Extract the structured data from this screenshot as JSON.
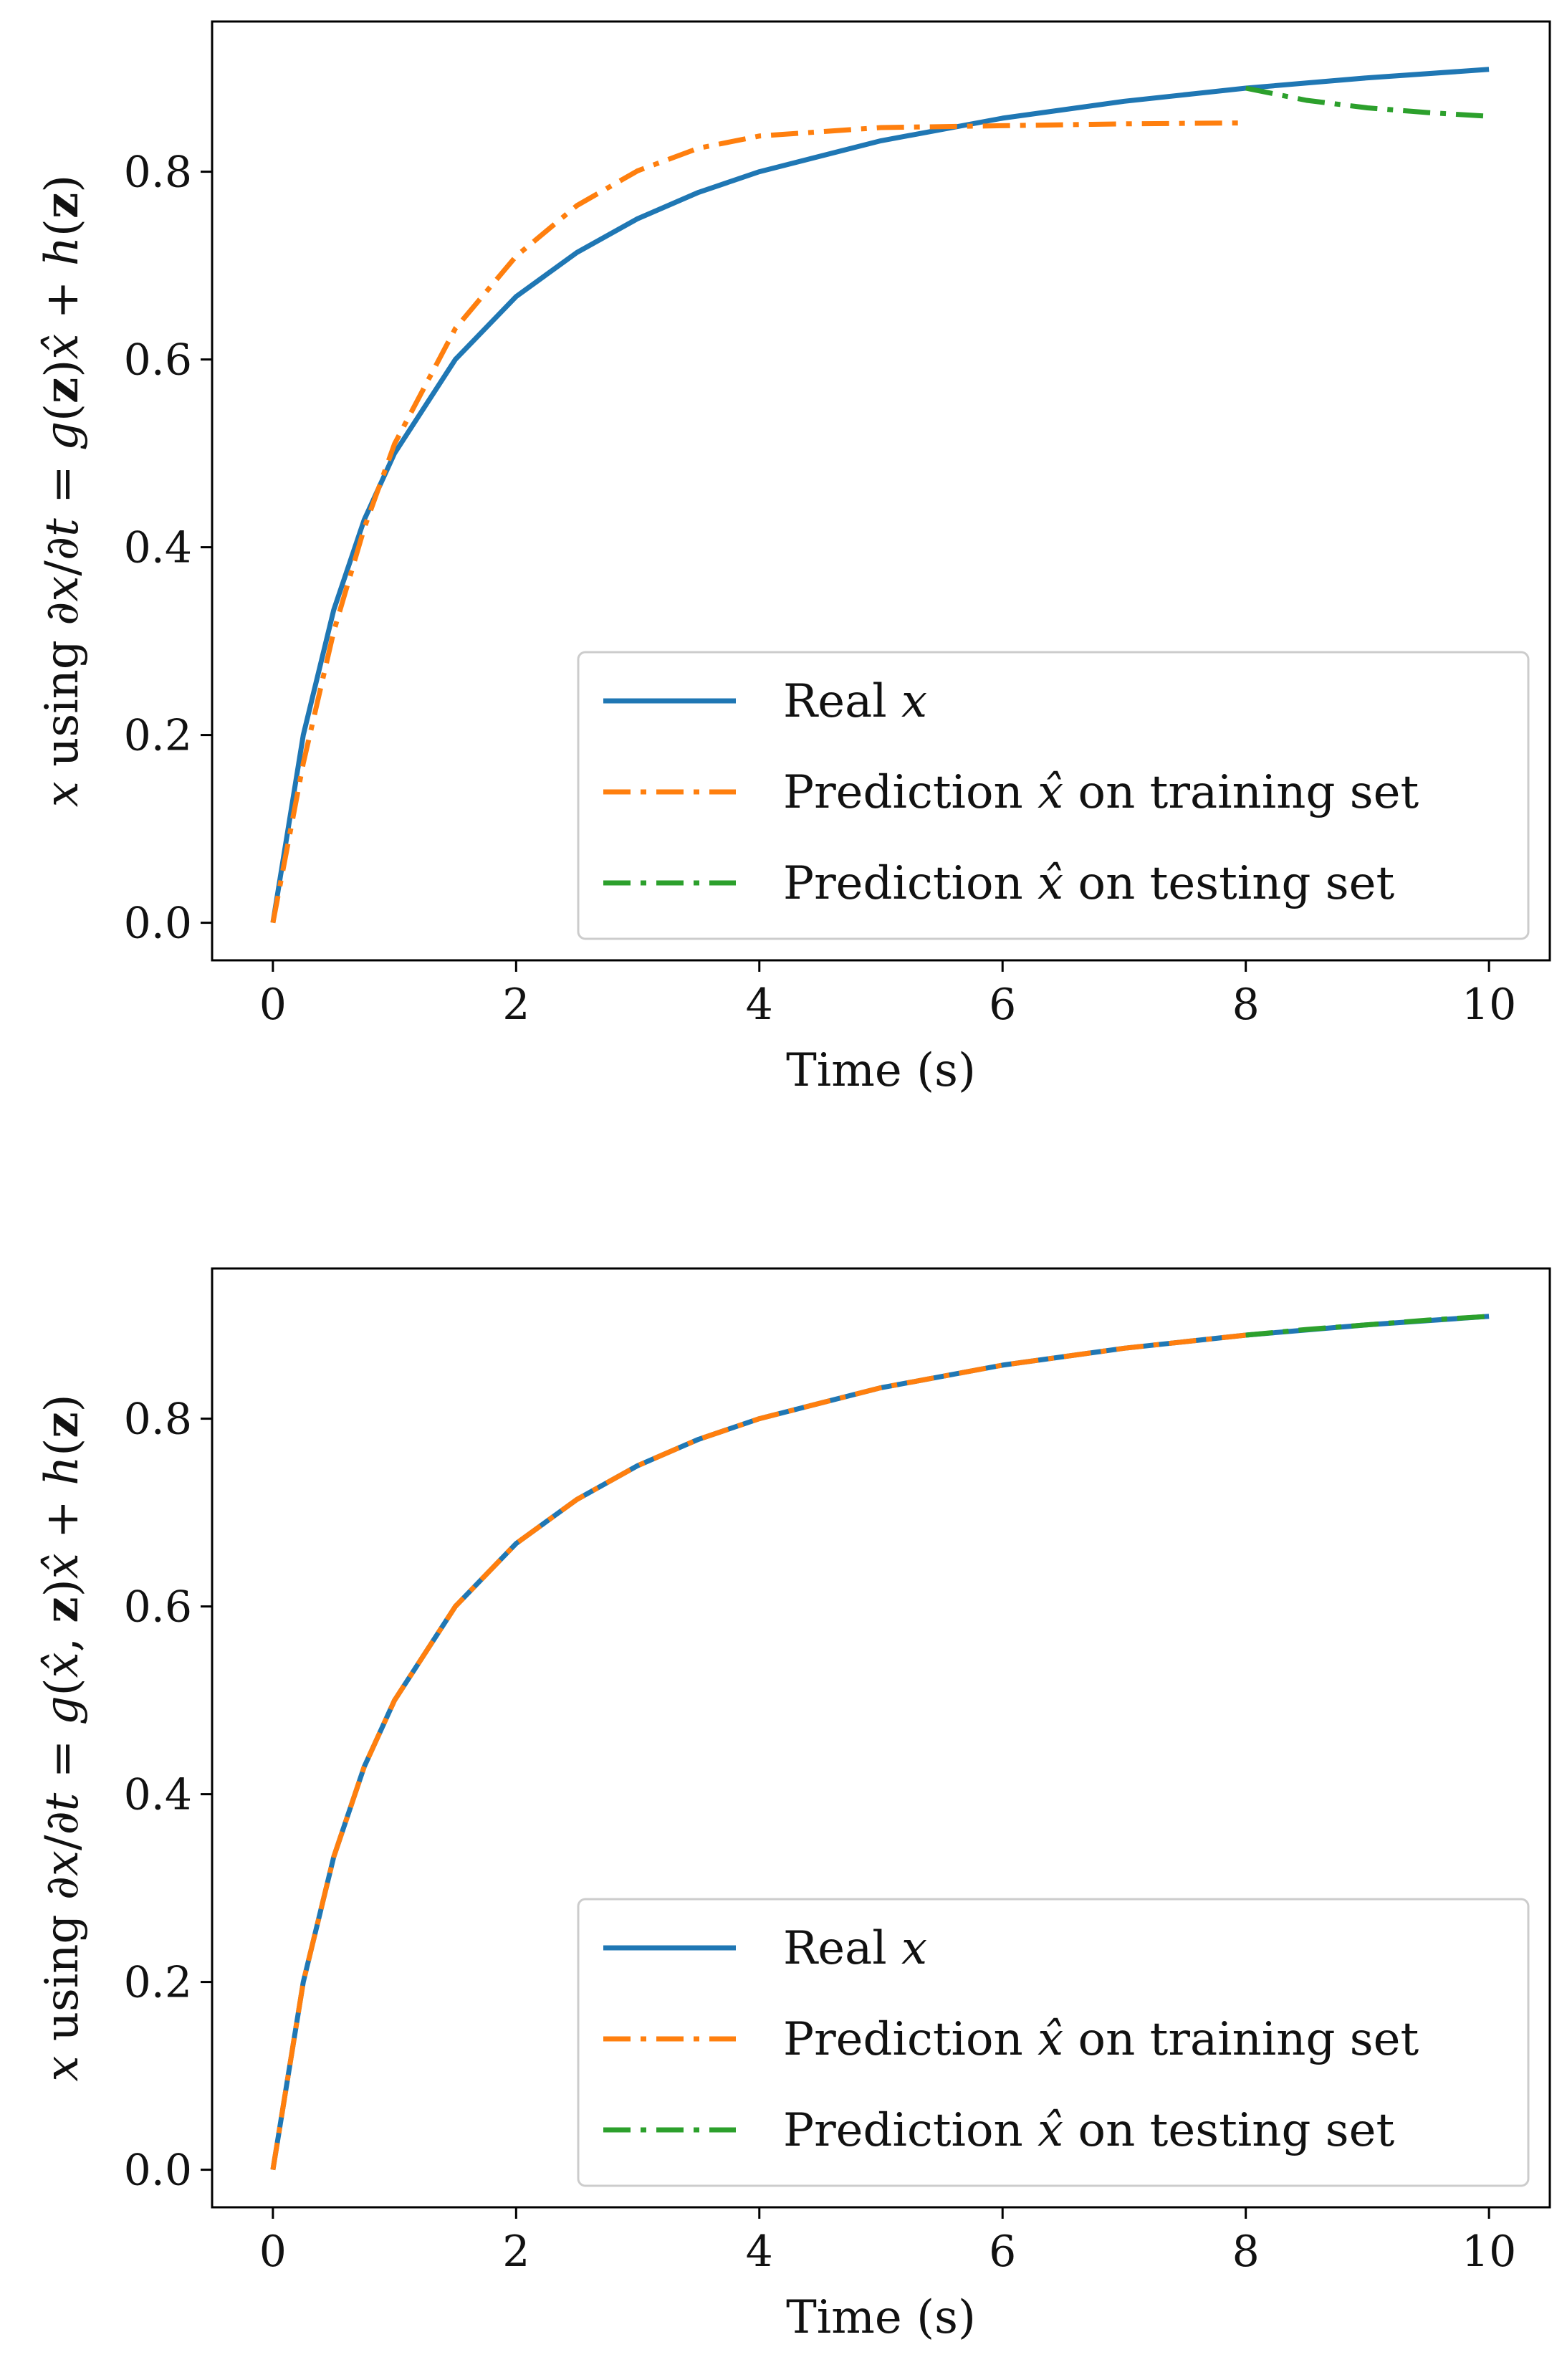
{
  "colors": {
    "real": "#1f77b4",
    "train": "#ff7f0e",
    "test": "#2ca02c",
    "axes": "#000000",
    "legend_border": "#cccccc"
  },
  "chart_data": [
    {
      "type": "line",
      "title": "",
      "xlabel": "Time (s)",
      "ylabel_parts": {
        "x": "x",
        "using": " using ∂",
        "x2": "x",
        "slash": "/∂",
        "t": "t",
        "eq": " = ",
        "g": "g",
        "args_open": "(",
        "z": "z",
        "args_close": ")",
        "xhat": "x̂",
        "plus": " + ",
        "h": "h",
        "paren_open": "(",
        "z2": "z",
        "paren_close": ")"
      },
      "xlim": [
        -0.5,
        10.5
      ],
      "ylim": [
        -0.04,
        0.96
      ],
      "xticks": [
        0,
        2,
        4,
        6,
        8,
        10
      ],
      "xtick_labels": [
        "0",
        "2",
        "4",
        "6",
        "8",
        "10"
      ],
      "yticks": [
        0.0,
        0.2,
        0.4,
        0.6,
        0.8
      ],
      "ytick_labels": [
        "0.0",
        "0.2",
        "0.4",
        "0.6",
        "0.8"
      ],
      "legend_position": "lower-right",
      "series": [
        {
          "name": "Real x",
          "legend": {
            "prefix": "Real ",
            "var": "x",
            "suffix": ""
          },
          "style": "solid",
          "color_key": "real",
          "x": [
            0,
            0.25,
            0.5,
            0.75,
            1,
            1.5,
            2,
            2.5,
            3,
            3.5,
            4,
            5,
            6,
            7,
            8,
            9,
            10
          ],
          "y": [
            0,
            0.2,
            0.333,
            0.429,
            0.5,
            0.6,
            0.667,
            0.714,
            0.75,
            0.778,
            0.8,
            0.833,
            0.857,
            0.875,
            0.889,
            0.9,
            0.909
          ]
        },
        {
          "name": "Prediction x̂ on training set",
          "legend": {
            "prefix": "Prediction ",
            "var": "x̂",
            "suffix": " on training set"
          },
          "style": "dashdot",
          "color_key": "train",
          "x": [
            0,
            0.25,
            0.5,
            0.75,
            1,
            1.5,
            2,
            2.5,
            3,
            3.5,
            4,
            5,
            6,
            7,
            8
          ],
          "y": [
            0,
            0.17,
            0.31,
            0.42,
            0.51,
            0.633,
            0.71,
            0.764,
            0.801,
            0.825,
            0.838,
            0.847,
            0.849,
            0.851,
            0.852
          ]
        },
        {
          "name": "Prediction x̂ on testing set",
          "legend": {
            "prefix": "Prediction ",
            "var": "x̂",
            "suffix": " on testing set"
          },
          "style": "dashdot",
          "color_key": "test",
          "x": [
            8,
            8.5,
            9,
            9.5,
            10
          ],
          "y": [
            0.889,
            0.876,
            0.868,
            0.863,
            0.859
          ]
        }
      ]
    },
    {
      "type": "line",
      "title": "",
      "xlabel": "Time (s)",
      "ylabel_parts": {
        "x": "x",
        "using": " using ∂",
        "x2": "x",
        "slash": "/∂",
        "t": "t",
        "eq": " = ",
        "g": "g",
        "args_open": "(",
        "xhat_arg": "x̂",
        "comma": ", ",
        "z": "z",
        "args_close": ")",
        "xhat": "x̂",
        "plus": " + ",
        "h": "h",
        "paren_open": "(",
        "z2": "z",
        "paren_close": ")"
      },
      "xlim": [
        -0.5,
        10.5
      ],
      "ylim": [
        -0.04,
        0.96
      ],
      "xticks": [
        0,
        2,
        4,
        6,
        8,
        10
      ],
      "xtick_labels": [
        "0",
        "2",
        "4",
        "6",
        "8",
        "10"
      ],
      "yticks": [
        0.0,
        0.2,
        0.4,
        0.6,
        0.8
      ],
      "ytick_labels": [
        "0.0",
        "0.2",
        "0.4",
        "0.6",
        "0.8"
      ],
      "legend_position": "lower-right",
      "series": [
        {
          "name": "Real x",
          "legend": {
            "prefix": "Real ",
            "var": "x",
            "suffix": ""
          },
          "style": "solid",
          "color_key": "real",
          "x": [
            0,
            0.25,
            0.5,
            0.75,
            1,
            1.5,
            2,
            2.5,
            3,
            3.5,
            4,
            5,
            6,
            7,
            8,
            9,
            10
          ],
          "y": [
            0,
            0.2,
            0.333,
            0.429,
            0.5,
            0.6,
            0.667,
            0.714,
            0.75,
            0.778,
            0.8,
            0.833,
            0.857,
            0.875,
            0.889,
            0.9,
            0.909
          ]
        },
        {
          "name": "Prediction x̂ on training set",
          "legend": {
            "prefix": "Prediction ",
            "var": "x̂",
            "suffix": " on training set"
          },
          "style": "dashdot",
          "color_key": "train",
          "x": [
            0,
            0.25,
            0.5,
            0.75,
            1,
            1.5,
            2,
            2.5,
            3,
            3.5,
            4,
            5,
            6,
            7,
            8
          ],
          "y": [
            0,
            0.2,
            0.333,
            0.429,
            0.5,
            0.6,
            0.667,
            0.714,
            0.75,
            0.778,
            0.8,
            0.833,
            0.857,
            0.875,
            0.889
          ]
        },
        {
          "name": "Prediction x̂ on testing set",
          "legend": {
            "prefix": "Prediction ",
            "var": "x̂",
            "suffix": " on testing set"
          },
          "style": "dashdot",
          "color_key": "test",
          "x": [
            8,
            8.5,
            9,
            9.5,
            10
          ],
          "y": [
            0.889,
            0.895,
            0.9,
            0.905,
            0.909
          ]
        }
      ]
    }
  ]
}
